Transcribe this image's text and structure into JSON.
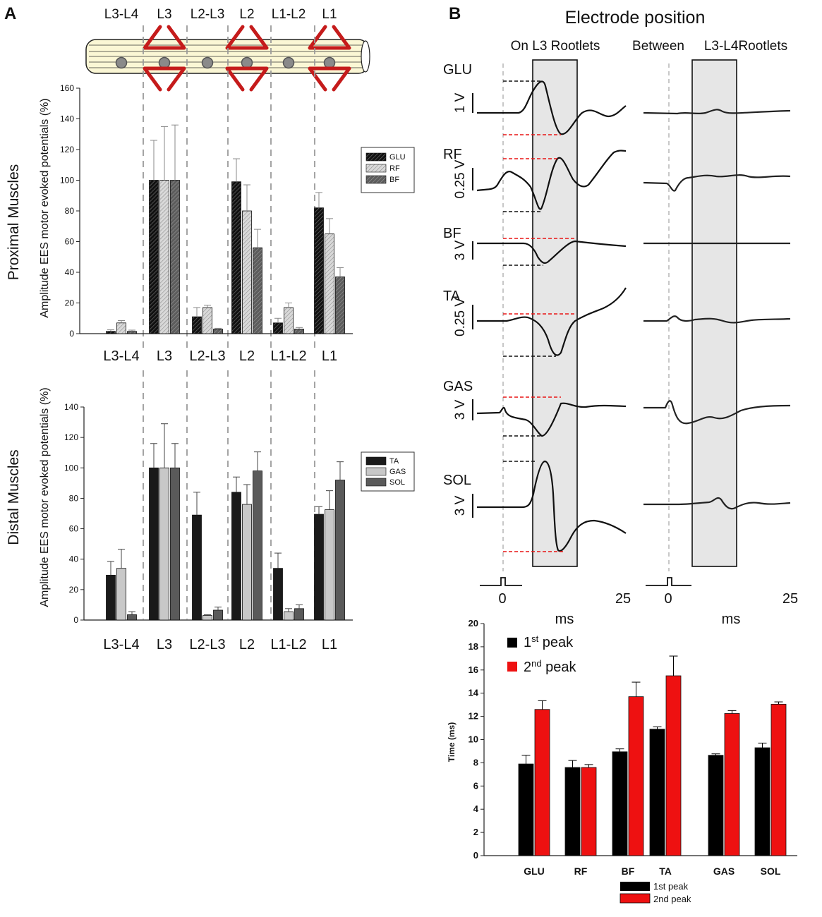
{
  "panel_a": {
    "letter": "A",
    "proximal_side_label": "Proximal Muscles",
    "distal_side_label": "Distal Muscles",
    "axis_label": "Amplitude EES motor evoked potentials (%)"
  },
  "panel_b": {
    "letter": "B",
    "title": "Electrode position",
    "left_header": "On L3 Rootlets",
    "right_header_a": "Between",
    "right_header_b": "L3-L4Rootlets",
    "muscles": [
      "GLU",
      "RF",
      "BF",
      "TA",
      "GAS",
      "SOL"
    ],
    "scales": [
      "1 V",
      "0.25 V",
      "3 V",
      "0.25 V",
      "3 V",
      "3 V"
    ],
    "time_zero": "0",
    "time_end": "25",
    "time_unit": "ms"
  },
  "colors": {
    "dark": "#1a1a1a",
    "light_gray": "#c8c8c8",
    "mid_gray": "#5a5a5a",
    "red": "#ee1111",
    "cord": "#fbf7d5",
    "grid_dash": "#9a9a9a",
    "shade": "#e6e6e6"
  },
  "chart_data": [
    {
      "id": "proximal",
      "type": "bar",
      "title": "Proximal Muscles",
      "ylabel": "Amplitude EES motor evoked potentials (%)",
      "categories": [
        "L3-L4",
        "L3",
        "L2-L3",
        "L2",
        "L1-L2",
        "L1"
      ],
      "ylim": [
        0,
        160
      ],
      "yticks": [
        0,
        20,
        40,
        60,
        80,
        100,
        120,
        140,
        160
      ],
      "legend_position": "right",
      "series": [
        {
          "name": "GLU",
          "values": [
            1.5,
            100,
            11,
            99,
            7,
            82
          ],
          "errors": [
            1,
            26,
            6,
            15,
            3,
            10
          ]
        },
        {
          "name": "RF",
          "values": [
            7,
            100,
            17,
            80,
            17,
            65
          ],
          "errors": [
            1.5,
            35,
            1.5,
            17,
            3,
            10
          ]
        },
        {
          "name": "BF",
          "values": [
            1.5,
            100,
            3,
            56,
            3,
            37
          ],
          "errors": [
            0.8,
            36,
            0.5,
            12,
            1,
            6
          ]
        }
      ]
    },
    {
      "id": "distal",
      "type": "bar",
      "title": "Distal Muscles",
      "ylabel": "Amplitude EES motor evoked potentials (%)",
      "categories": [
        "L3-L4",
        "L3",
        "L2-L3",
        "L2",
        "L1-L2",
        "L1"
      ],
      "ylim": [
        0,
        140
      ],
      "yticks": [
        0,
        20,
        40,
        60,
        80,
        100,
        120,
        140
      ],
      "legend_position": "right",
      "series": [
        {
          "name": "TA",
          "values": [
            29.5,
            100,
            69,
            84,
            34,
            69.5
          ],
          "errors": [
            9,
            16,
            15,
            10,
            10,
            5
          ]
        },
        {
          "name": "GAS",
          "values": [
            34,
            100,
            3,
            76,
            5.5,
            72.5
          ],
          "errors": [
            12.5,
            29,
            0.5,
            13,
            2,
            12.5
          ]
        },
        {
          "name": "SOL",
          "values": [
            3.5,
            100,
            6.5,
            98,
            7.5,
            92
          ],
          "errors": [
            2,
            16,
            2,
            12.5,
            2.5,
            12
          ]
        }
      ]
    },
    {
      "id": "latency",
      "type": "bar",
      "title": "",
      "ylabel": "Time (ms)",
      "categories": [
        "GLU",
        "RF",
        "BF",
        "TA",
        "GAS",
        "SOL"
      ],
      "ylim": [
        0,
        20
      ],
      "yticks": [
        0,
        2,
        4,
        6,
        8,
        10,
        12,
        14,
        16,
        18,
        20
      ],
      "legend_position": "top-left",
      "legend_labels": [
        "1st peak",
        "2nd peak"
      ],
      "bottom_legend_labels": [
        "1st peak",
        "2nd peak"
      ],
      "series": [
        {
          "name": "1st peak",
          "values": [
            7.9,
            7.6,
            8.95,
            10.9,
            8.65,
            9.3
          ],
          "errors": [
            0.75,
            0.6,
            0.25,
            0.2,
            0.12,
            0.4
          ]
        },
        {
          "name": "2nd peak",
          "values": [
            12.6,
            7.6,
            13.7,
            15.5,
            12.25,
            13.05
          ],
          "errors": [
            0.75,
            0.25,
            1.25,
            1.7,
            0.25,
            0.2
          ]
        }
      ]
    }
  ]
}
